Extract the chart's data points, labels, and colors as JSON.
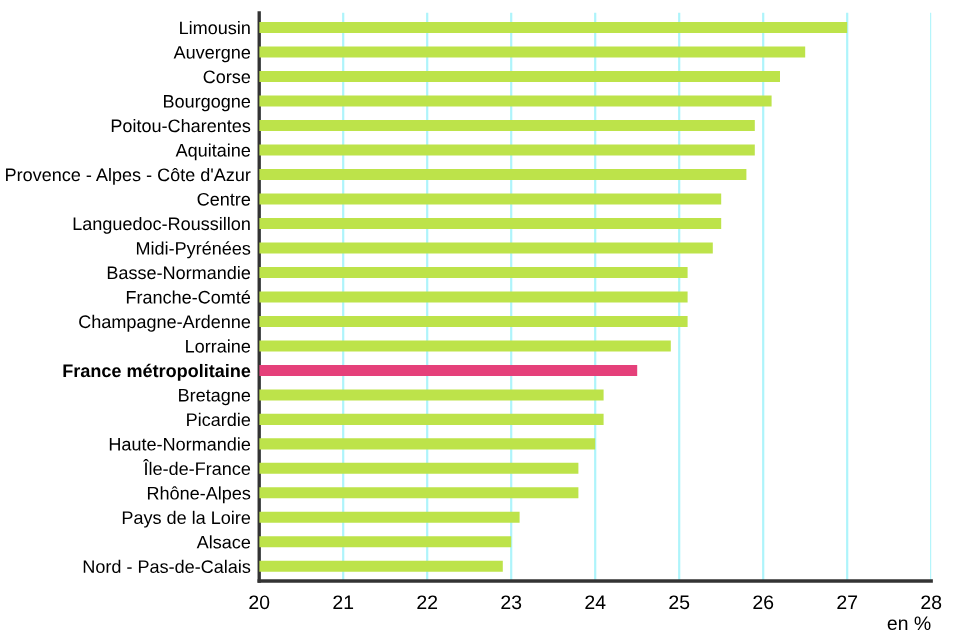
{
  "chart_data": {
    "type": "bar",
    "orientation": "horizontal",
    "xlabel": "en %",
    "categories": [
      "Limousin",
      "Auvergne",
      "Corse",
      "Bourgogne",
      "Poitou-Charentes",
      "Aquitaine",
      "Provence - Alpes - Côte d'Azur",
      "Centre",
      "Languedoc-Roussillon",
      "Midi-Pyrénées",
      "Basse-Normandie",
      "Franche-Comté",
      "Champagne-Ardenne",
      "Lorraine",
      "France métropolitaine",
      "Bretagne",
      "Picardie",
      "Haute-Normandie",
      "Île-de-France",
      "Rhône-Alpes",
      "Pays de la Loire",
      "Alsace",
      "Nord - Pas-de-Calais"
    ],
    "values": [
      27.0,
      26.5,
      26.2,
      26.1,
      25.9,
      25.9,
      25.8,
      25.5,
      25.5,
      25.4,
      25.1,
      25.1,
      25.1,
      24.9,
      24.5,
      24.1,
      24.1,
      24.0,
      23.8,
      23.8,
      23.1,
      23.0,
      22.9
    ],
    "colors": [
      "#bde34a",
      "#bde34a",
      "#bde34a",
      "#bde34a",
      "#bde34a",
      "#bde34a",
      "#bde34a",
      "#bde34a",
      "#bde34a",
      "#bde34a",
      "#bde34a",
      "#bde34a",
      "#bde34a",
      "#bde34a",
      "#e5407a",
      "#bde34a",
      "#bde34a",
      "#bde34a",
      "#bde34a",
      "#bde34a",
      "#bde34a",
      "#bde34a",
      "#bde34a"
    ],
    "xlim": [
      20,
      28
    ],
    "xticks": [
      20,
      21,
      22,
      23,
      24,
      25,
      26,
      27,
      28
    ],
    "grid": "x"
  }
}
